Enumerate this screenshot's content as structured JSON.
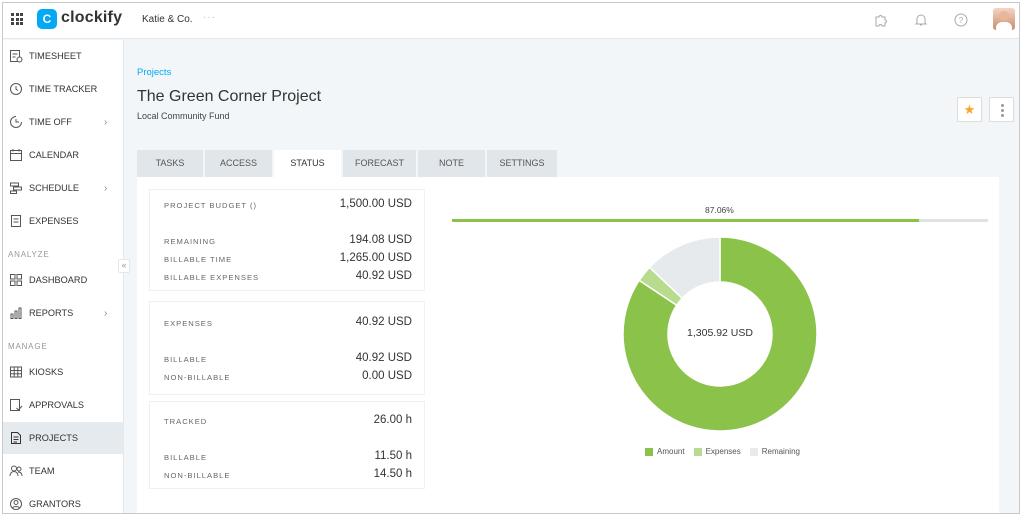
{
  "app": {
    "name": "clockify",
    "logo_letter": "C",
    "workspace": "Katie & Co.",
    "workspace_more": "···"
  },
  "topbar_icons": [
    "puzzle-icon",
    "bell-icon",
    "help-icon",
    "user-avatar"
  ],
  "sidebar": {
    "items": [
      {
        "label": "TIMESHEET",
        "icon": "timesheet-icon"
      },
      {
        "label": "TIME TRACKER",
        "icon": "clock-icon"
      },
      {
        "label": "TIME OFF",
        "icon": "clock-off-icon",
        "chevron": "›"
      },
      {
        "label": "CALENDAR",
        "icon": "calendar-icon"
      },
      {
        "label": "SCHEDULE",
        "icon": "schedule-icon",
        "chevron": "›"
      },
      {
        "label": "EXPENSES",
        "icon": "receipt-icon"
      },
      {
        "label": "DASHBOARD",
        "icon": "dashboard-icon"
      },
      {
        "label": "REPORTS",
        "icon": "bar-chart-icon",
        "chevron": "›"
      },
      {
        "label": "KIOSKS",
        "icon": "kiosk-icon"
      },
      {
        "label": "APPROVALS",
        "icon": "approvals-icon"
      },
      {
        "label": "PROJECTS",
        "icon": "document-icon",
        "active": true
      },
      {
        "label": "TEAM",
        "icon": "team-icon"
      },
      {
        "label": "GRANTORS",
        "icon": "person-icon"
      }
    ],
    "sections": {
      "analyze": "ANALYZE",
      "manage": "MANAGE"
    },
    "collapse": "«"
  },
  "breadcrumb": "Projects",
  "project": {
    "title": "The Green Corner Project",
    "subtitle": "Local Community Fund",
    "star": "★"
  },
  "tabs": [
    "TASKS",
    "ACCESS",
    "STATUS",
    "FORECAST",
    "NOTE",
    "SETTINGS"
  ],
  "active_tab": "STATUS",
  "budget_card": {
    "rows": [
      {
        "label": "PROJECT BUDGET ()",
        "value": "1,500.00 USD"
      },
      {
        "label": "REMAINING",
        "value": "194.08 USD"
      },
      {
        "label": "BILLABLE TIME",
        "value": "1,265.00 USD"
      },
      {
        "label": "BILLABLE EXPENSES",
        "value": "40.92 USD"
      }
    ]
  },
  "expenses_card": {
    "rows": [
      {
        "label": "EXPENSES",
        "value": "40.92 USD"
      },
      {
        "label": "BILLABLE",
        "value": "40.92 USD"
      },
      {
        "label": "NON-BILLABLE",
        "value": "0.00 USD"
      }
    ]
  },
  "tracked_card": {
    "rows": [
      {
        "label": "TRACKED",
        "value": "26.00 h"
      },
      {
        "label": "BILLABLE",
        "value": "11.50 h"
      },
      {
        "label": "NON-BILLABLE",
        "value": "14.50 h"
      }
    ]
  },
  "progress": {
    "label": "87.06%",
    "fraction": 0.8706
  },
  "colors": {
    "amount": "#8bc34a",
    "expenses": "#b7dc8f",
    "remaining": "#e6eaec",
    "accent": "#03a9f4",
    "star": "#f5a623"
  },
  "chart_data": {
    "type": "pie",
    "center_label": "1,305.92 USD",
    "categories": [
      "Amount",
      "Expenses",
      "Remaining"
    ],
    "values": [
      1265.0,
      40.92,
      194.08
    ],
    "legend_placement": "bottom"
  }
}
